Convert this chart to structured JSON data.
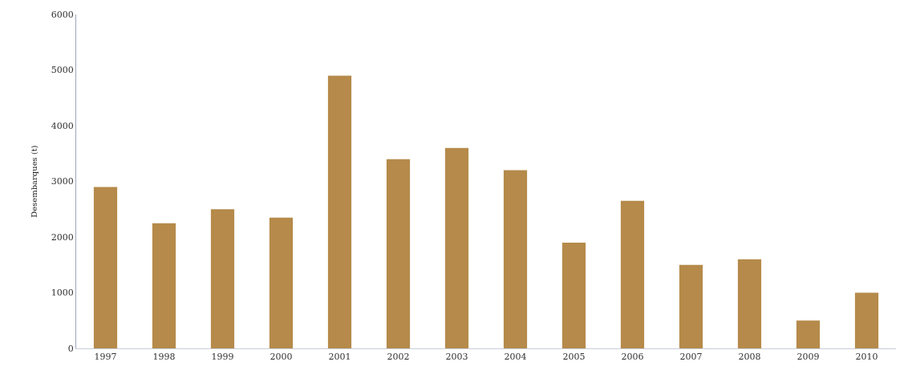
{
  "chart_data": {
    "type": "bar",
    "ylabel": "Desembarques (t)",
    "categories": [
      "1997",
      "1998",
      "1999",
      "2000",
      "2001",
      "2002",
      "2003",
      "2004",
      "2005",
      "2006",
      "2007",
      "2008",
      "2009",
      "2010"
    ],
    "values": [
      2900,
      2250,
      2500,
      2350,
      4900,
      3400,
      3600,
      3200,
      1900,
      2650,
      1500,
      1600,
      500,
      1000
    ],
    "color": "#b58a4a",
    "ylim": [
      0,
      6000
    ],
    "yticks": [
      0,
      1000,
      2000,
      3000,
      4000,
      5000,
      6000
    ]
  }
}
